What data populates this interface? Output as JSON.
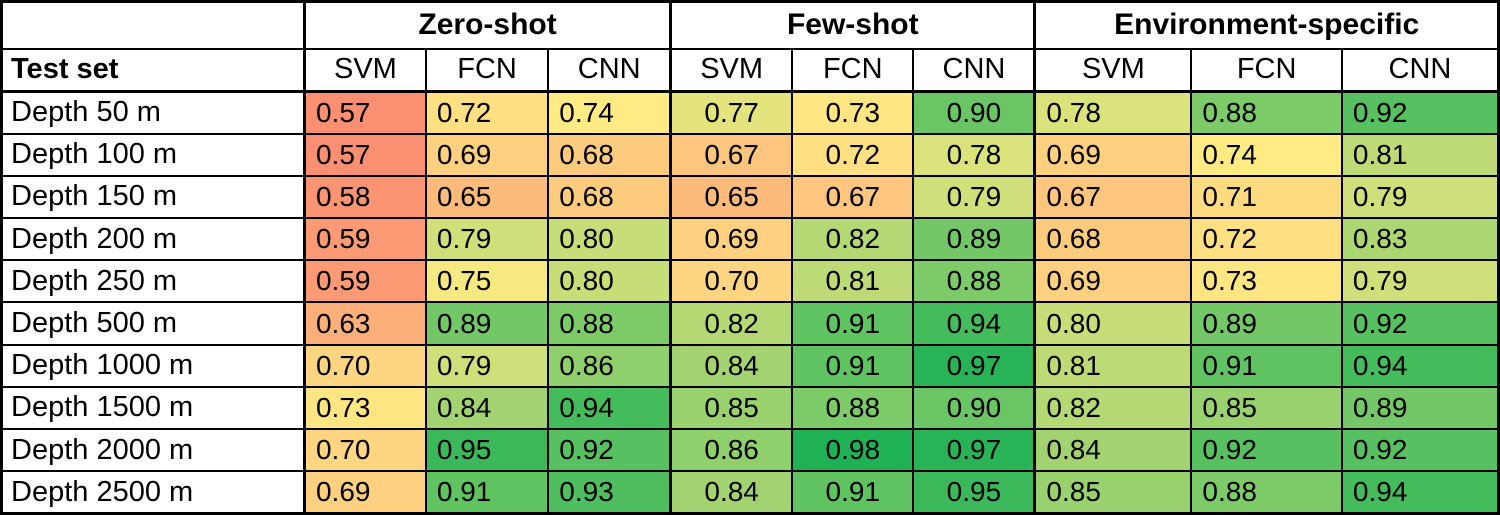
{
  "chart_data": {
    "type": "heatmap",
    "row_header": "Test set",
    "col_groups": [
      {
        "label": "Zero-shot",
        "models": [
          "SVM",
          "FCN",
          "CNN"
        ]
      },
      {
        "label": "Few-shot",
        "models": [
          "SVM",
          "FCN",
          "CNN"
        ]
      },
      {
        "label": "Environment-specific",
        "models": [
          "SVM",
          "FCN",
          "CNN"
        ]
      }
    ],
    "rows": [
      "Depth 50 m",
      "Depth 100 m",
      "Depth 150 m",
      "Depth 200 m",
      "Depth 250 m",
      "Depth 500 m",
      "Depth 1000 m",
      "Depth 1500 m",
      "Depth 2000 m",
      "Depth 2500 m"
    ],
    "values": [
      [
        0.57,
        0.72,
        0.74,
        0.77,
        0.73,
        0.9,
        0.78,
        0.88,
        0.92
      ],
      [
        0.57,
        0.69,
        0.68,
        0.67,
        0.72,
        0.78,
        0.69,
        0.74,
        0.81
      ],
      [
        0.58,
        0.65,
        0.68,
        0.65,
        0.67,
        0.79,
        0.67,
        0.71,
        0.79
      ],
      [
        0.59,
        0.79,
        0.8,
        0.69,
        0.82,
        0.89,
        0.68,
        0.72,
        0.83
      ],
      [
        0.59,
        0.75,
        0.8,
        0.7,
        0.81,
        0.88,
        0.69,
        0.73,
        0.79
      ],
      [
        0.63,
        0.89,
        0.88,
        0.82,
        0.91,
        0.94,
        0.8,
        0.89,
        0.92
      ],
      [
        0.7,
        0.79,
        0.86,
        0.84,
        0.91,
        0.97,
        0.81,
        0.91,
        0.94
      ],
      [
        0.73,
        0.84,
        0.94,
        0.85,
        0.88,
        0.9,
        0.82,
        0.85,
        0.89
      ],
      [
        0.7,
        0.95,
        0.92,
        0.86,
        0.98,
        0.97,
        0.84,
        0.92,
        0.92
      ],
      [
        0.69,
        0.91,
        0.93,
        0.84,
        0.91,
        0.95,
        0.85,
        0.88,
        0.94
      ]
    ],
    "value_decimals": 2,
    "value_range": [
      0.57,
      0.98
    ],
    "colormap": {
      "stops": [
        {
          "value": 0.5,
          "color": "#F8696B"
        },
        {
          "value": 0.74,
          "color": "#FFEB84"
        },
        {
          "value": 0.98,
          "color": "#1FB254"
        }
      ]
    },
    "text_color": "#000000",
    "border_color": "#000000",
    "background_color": "#FFFFFF"
  }
}
